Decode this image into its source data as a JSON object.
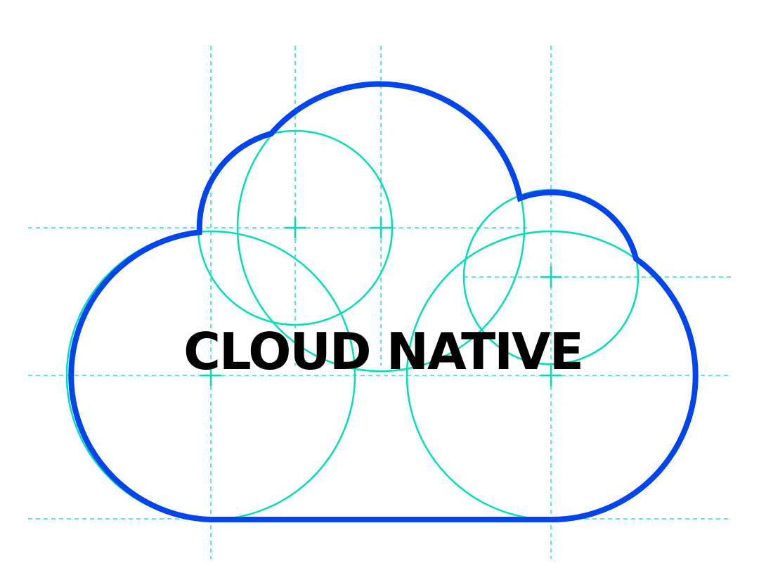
{
  "title": "CLOUD NATIVE",
  "colors": {
    "outline": "#0044ee",
    "guide": "#00e0b8",
    "text": "#000000"
  }
}
